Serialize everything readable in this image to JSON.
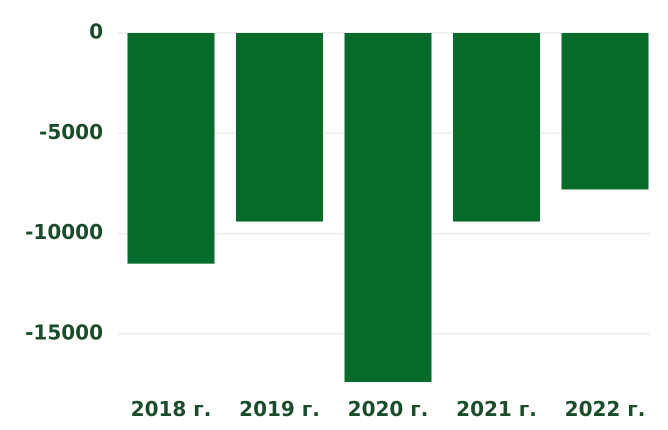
{
  "chart_data": {
    "type": "bar",
    "categories": [
      "2018 г.",
      "2019 г.",
      "2020 г.",
      "2021 г.",
      "2022 г."
    ],
    "values": [
      -11500,
      -9400,
      -17400,
      -9400,
      -7800
    ],
    "title": "",
    "xlabel": "",
    "ylabel": "",
    "ylim": [
      -17400,
      0
    ],
    "yticks": [
      0,
      -5000,
      -10000,
      -15000
    ],
    "ytick_labels": [
      "0",
      "-5000",
      "-10000",
      "-15000"
    ],
    "grid": true,
    "legend": "none",
    "colors": {
      "bar": "#056b2b",
      "text": "#1b4d2c",
      "grid": "#e6e6e6"
    }
  }
}
